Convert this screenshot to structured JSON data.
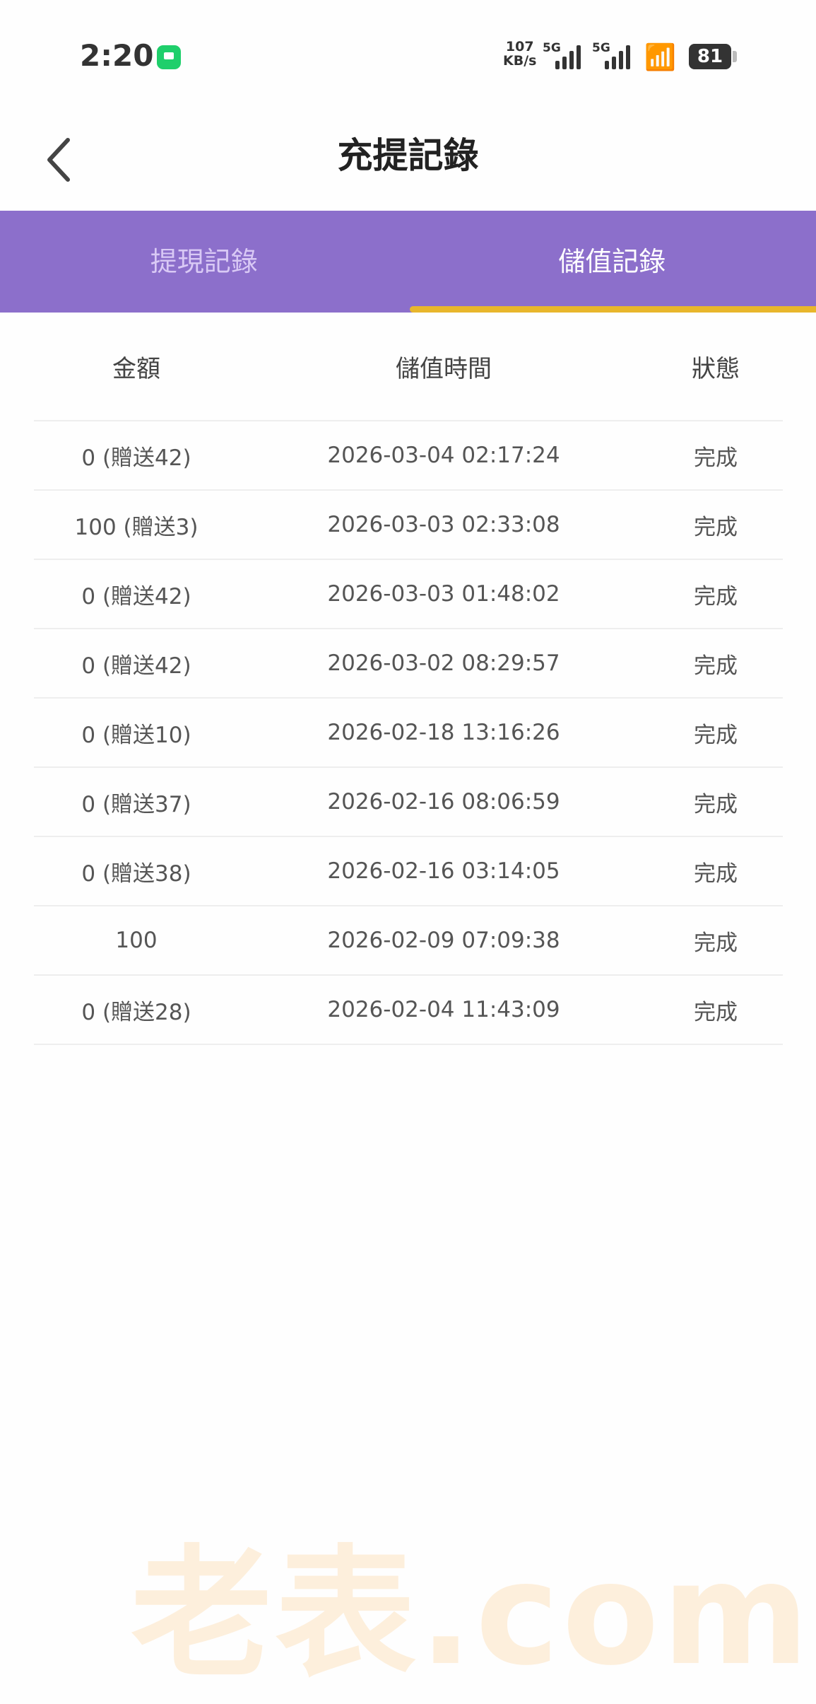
{
  "status_bar": {
    "time": "2:20",
    "net_speed": "107",
    "net_unit": "KB/s",
    "sim1": "5G",
    "sim2": "5G",
    "battery": "81"
  },
  "header": {
    "title": "充提記錄",
    "back_icon": "chevron-left"
  },
  "tabs": [
    {
      "label": "提現記錄",
      "active": false
    },
    {
      "label": "儲值記錄",
      "active": true
    }
  ],
  "colors": {
    "tab_bar": "#8c6fcb",
    "indicator": "#e8b62c"
  },
  "table": {
    "headers": [
      "金額",
      "儲值時間",
      "狀態"
    ],
    "rows": [
      [
        "0 (贈送42)",
        "2026-03-04 02:17:24",
        "完成"
      ],
      [
        "100 (贈送3)",
        "2026-03-03 02:33:08",
        "完成"
      ],
      [
        "0 (贈送42)",
        "2026-03-03 01:48:02",
        "完成"
      ],
      [
        "0 (贈送42)",
        "2026-03-02 08:29:57",
        "完成"
      ],
      [
        "0 (贈送10)",
        "2026-02-18 13:16:26",
        "完成"
      ],
      [
        "0 (贈送37)",
        "2026-02-16 08:06:59",
        "完成"
      ],
      [
        "0 (贈送38)",
        "2026-02-16 03:14:05",
        "完成"
      ],
      [
        "100",
        "2026-02-09 07:09:38",
        "完成"
      ],
      [
        "0 (贈送28)",
        "2026-02-04 11:43:09",
        "完成"
      ]
    ]
  },
  "watermark": "老表.com"
}
